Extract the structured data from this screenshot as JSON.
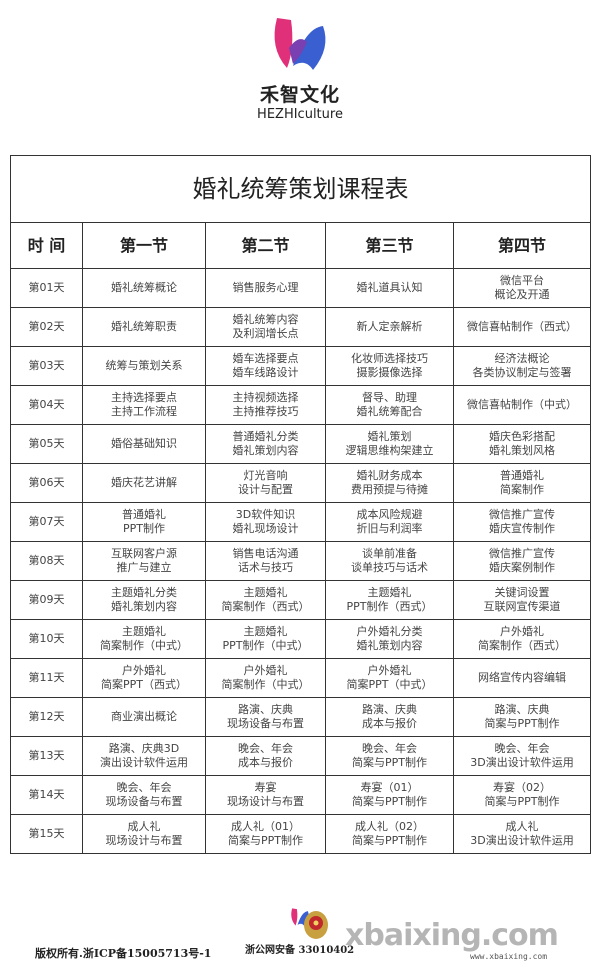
{
  "brand": {
    "name_cn": "禾智文化",
    "name_en": "HEZHIculture"
  },
  "table": {
    "title": "婚礼统筹策划课程表",
    "headers": [
      "时 间",
      "第一节",
      "第二节",
      "第三节",
      "第四节"
    ],
    "rows": [
      {
        "day": "第01天",
        "cells": [
          [
            "婚礼统筹概论"
          ],
          [
            "销售服务心理"
          ],
          [
            "婚礼道具认知"
          ],
          [
            "微信平台",
            "概论及开通"
          ]
        ]
      },
      {
        "day": "第02天",
        "cells": [
          [
            "婚礼统筹职责"
          ],
          [
            "婚礼统筹内容",
            "及利润增长点"
          ],
          [
            "新人定亲解析"
          ],
          [
            "微信喜帖制作（西式）"
          ]
        ]
      },
      {
        "day": "第03天",
        "cells": [
          [
            "统筹与策划关系"
          ],
          [
            "婚车选择要点",
            "婚车线路设计"
          ],
          [
            "化妆师选择技巧",
            "摄影摄像选择"
          ],
          [
            "经济法概论",
            "各类协议制定与签署"
          ]
        ]
      },
      {
        "day": "第04天",
        "cells": [
          [
            "主持选择要点",
            "主持工作流程"
          ],
          [
            "主持视频选择",
            "主持推荐技巧"
          ],
          [
            "督导、助理",
            "婚礼统筹配合"
          ],
          [
            "微信喜帖制作（中式）"
          ]
        ]
      },
      {
        "day": "第05天",
        "cells": [
          [
            "婚俗基础知识"
          ],
          [
            "普通婚礼分类",
            "婚礼策划内容"
          ],
          [
            "婚礼策划",
            "逻辑思维构架建立"
          ],
          [
            "婚庆色彩搭配",
            "婚礼策划风格"
          ]
        ]
      },
      {
        "day": "第06天",
        "cells": [
          [
            "婚庆花艺讲解"
          ],
          [
            "灯光音响",
            "设计与配置"
          ],
          [
            "婚礼财务成本",
            "费用预提与待摊"
          ],
          [
            "普通婚礼",
            "简案制作"
          ]
        ]
      },
      {
        "day": "第07天",
        "cells": [
          [
            "普通婚礼",
            "PPT制作"
          ],
          [
            "3D软件知识",
            "婚礼现场设计"
          ],
          [
            "成本风险规避",
            "折旧与利润率"
          ],
          [
            "微信推广宣传",
            "婚庆宣传制作"
          ]
        ]
      },
      {
        "day": "第08天",
        "cells": [
          [
            "互联网客户源",
            "推广与建立"
          ],
          [
            "销售电话沟通",
            "话术与技巧"
          ],
          [
            "谈单前准备",
            "谈单技巧与话术"
          ],
          [
            "微信推广宣传",
            "婚庆案例制作"
          ]
        ]
      },
      {
        "day": "第09天",
        "cells": [
          [
            "主题婚礼分类",
            "婚礼策划内容"
          ],
          [
            "主题婚礼",
            "简案制作（西式）"
          ],
          [
            "主题婚礼",
            "PPT制作（西式）"
          ],
          [
            "关键词设置",
            "互联网宣传渠道"
          ]
        ]
      },
      {
        "day": "第10天",
        "cells": [
          [
            "主题婚礼",
            "简案制作（中式）"
          ],
          [
            "主题婚礼",
            "PPT制作（中式）"
          ],
          [
            "户外婚礼分类",
            "婚礼策划内容"
          ],
          [
            "户外婚礼",
            "简案制作（西式）"
          ]
        ]
      },
      {
        "day": "第11天",
        "cells": [
          [
            "户外婚礼",
            "简案PPT（西式）"
          ],
          [
            "户外婚礼",
            "简案制作（中式）"
          ],
          [
            "户外婚礼",
            "简案PPT（中式）"
          ],
          [
            "网络宣传内容编辑"
          ]
        ]
      },
      {
        "day": "第12天",
        "cells": [
          [
            "商业演出概论"
          ],
          [
            "路演、庆典",
            "现场设备与布置"
          ],
          [
            "路演、庆典",
            "成本与报价"
          ],
          [
            "路演、庆典",
            "简案与PPT制作"
          ]
        ]
      },
      {
        "day": "第13天",
        "cells": [
          [
            "路演、庆典3D",
            "演出设计软件运用"
          ],
          [
            "晚会、年会",
            "成本与报价"
          ],
          [
            "晚会、年会",
            "简案与PPT制作"
          ],
          [
            "晚会、年会",
            "3D演出设计软件运用"
          ]
        ]
      },
      {
        "day": "第14天",
        "cells": [
          [
            "晚会、年会",
            "现场设备与布置"
          ],
          [
            "寿宴",
            "现场设计与布置"
          ],
          [
            "寿宴（01）",
            "简案与PPT制作"
          ],
          [
            "寿宴（02）",
            "简案与PPT制作"
          ]
        ]
      },
      {
        "day": "第15天",
        "cells": [
          [
            "成人礼",
            "现场设计与布置"
          ],
          [
            "成人礼（01）",
            "简案与PPT制作"
          ],
          [
            "成人礼（02）",
            "简案与PPT制作"
          ],
          [
            "成人礼",
            "3D演出设计软件运用"
          ]
        ]
      }
    ]
  },
  "footer": {
    "copyright": "版权所有.浙ICP备15005713号-1",
    "police": "浙公网安备 33010402",
    "watermark": "xbaixing.com",
    "watermark_url": "www.xbaixing.com"
  },
  "colors": {
    "logo_pink": "#e0307a",
    "logo_blue": "#3a5fd0",
    "logo_purple": "#7a3fb0",
    "border": "#333333"
  }
}
